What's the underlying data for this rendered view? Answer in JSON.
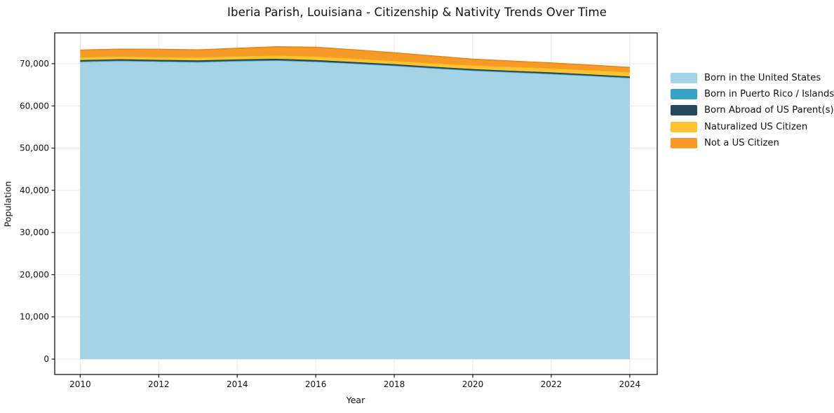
{
  "title": "Iberia Parish, Louisiana - Citizenship & Nativity Trends Over Time",
  "chart_data": {
    "type": "area",
    "stacked": true,
    "title": "Iberia Parish, Louisiana - Citizenship & Nativity Trends Over Time",
    "xlabel": "Year",
    "ylabel": "Population",
    "grid": true,
    "legend_position": "right",
    "xlim": [
      2009.35,
      2024.7
    ],
    "ylim": [
      -3650,
      77300
    ],
    "x": [
      2010,
      2011,
      2012,
      2013,
      2014,
      2015,
      2016,
      2017,
      2018,
      2019,
      2020,
      2021,
      2022,
      2023,
      2024
    ],
    "x_ticks": [
      2010,
      2012,
      2014,
      2016,
      2018,
      2020,
      2022,
      2024
    ],
    "x_tick_labels": [
      "2010",
      "2012",
      "2014",
      "2016",
      "2018",
      "2020",
      "2022",
      "2024"
    ],
    "y_ticks": [
      0,
      10000,
      20000,
      30000,
      40000,
      50000,
      60000,
      70000
    ],
    "y_tick_labels": [
      "0",
      "10,000",
      "20,000",
      "30,000",
      "40,000",
      "50,000",
      "60,000",
      "70,000"
    ],
    "series": [
      {
        "name": "Born in the United States",
        "color": "#a5d3e6",
        "edge": "#93c8dd",
        "values": [
          70400,
          70600,
          70450,
          70300,
          70550,
          70700,
          70400,
          69950,
          69450,
          68850,
          68300,
          67900,
          67500,
          67050,
          66550
        ]
      },
      {
        "name": "Born in Puerto Rico / Islands",
        "color": "#38a3c3",
        "edge": "#2e8fae",
        "values": [
          150,
          150,
          140,
          150,
          160,
          150,
          150,
          140,
          150,
          150,
          140,
          150,
          150,
          140,
          150
        ]
      },
      {
        "name": "Born Abroad of US Parent(s)",
        "color": "#26495c",
        "edge": "#1e3c4c",
        "values": [
          310,
          300,
          320,
          330,
          310,
          320,
          330,
          310,
          290,
          280,
          290,
          280,
          290,
          280,
          270
        ]
      },
      {
        "name": "Naturalized US Citizen",
        "color": "#fcc330",
        "edge": "#e9ad1a",
        "values": [
          720,
          700,
          680,
          750,
          780,
          820,
          870,
          840,
          810,
          860,
          900,
          950,
          1000,
          1030,
          1060
        ]
      },
      {
        "name": "Not a US Citizen",
        "color": "#f79a28",
        "edge": "#e28416",
        "values": [
          1650,
          1700,
          1850,
          1750,
          1850,
          2050,
          2150,
          2050,
          1900,
          1700,
          1450,
          1350,
          1250,
          1180,
          1100
        ]
      }
    ],
    "colors": {
      "background": "#ffffff",
      "grid": "#e7e7e7",
      "spine": "#1a1a1a",
      "tick_text": "#111111"
    }
  }
}
